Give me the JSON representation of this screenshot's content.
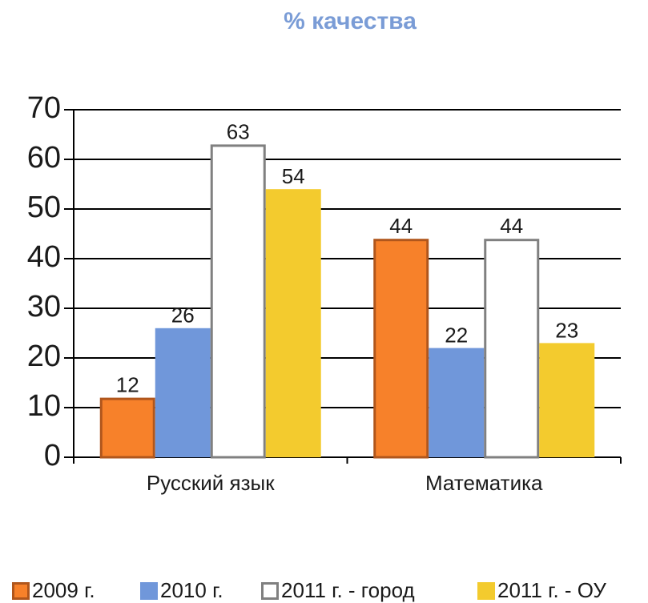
{
  "chart_data": {
    "type": "bar",
    "title": "% качества",
    "categories": [
      "Русский язык",
      "Математика"
    ],
    "series": [
      {
        "name": "2009 г.",
        "color": "#f7812a",
        "edgecolor": "#b0561c",
        "values": [
          12,
          44
        ]
      },
      {
        "name": "2010 г.",
        "color": "#7097da",
        "values": [
          26,
          22
        ]
      },
      {
        "name": "2011 г. - город",
        "color": "#ffffff",
        "edgecolor": "#808080",
        "values": [
          63,
          44
        ]
      },
      {
        "name": "2011 г. - ОУ",
        "color": "#f3cb2e",
        "values": [
          54,
          23
        ]
      }
    ],
    "ylim": [
      0,
      70
    ],
    "yticks": [
      0,
      10,
      20,
      30,
      40,
      50,
      60,
      70
    ],
    "grid": true,
    "legend": "bottom"
  }
}
